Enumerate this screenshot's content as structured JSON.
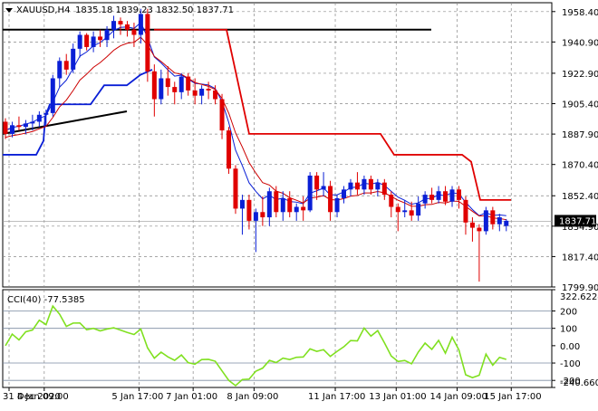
{
  "header": {
    "symbol_timeframe": "XAUUSD,H4",
    "ohlc": "1835.18 1839.23 1832.50 1837.71"
  },
  "colors": {
    "bull": "#0a1fd6",
    "bear": "#e00000",
    "trailing_stop": "#e00000",
    "ema_fast": "#0a1fd6",
    "ema_slow": "#cc0000",
    "channel": "#0a1fd6",
    "cci": "#80e020",
    "grid": "#888888",
    "level_line": "#000000",
    "price_box": "#000000"
  },
  "price_axis": {
    "ticks": [
      "1958.40",
      "1940.90",
      "1922.90",
      "1905.40",
      "1887.90",
      "1870.40",
      "1852.40",
      "1834.90",
      "1817.40",
      "1799.90"
    ],
    "current_price": "1837.71",
    "ylim": [
      1799.9,
      1963.5
    ]
  },
  "cci_panel": {
    "label": "CCI(40) -77.5385",
    "ticks": [
      "322.6224",
      "200",
      "100",
      "0.00",
      "-100",
      "-200",
      "-240.6604"
    ],
    "ylim": [
      -240.6604,
      322.6224
    ],
    "levels": [
      200,
      100,
      -100,
      -200
    ]
  },
  "time_axis": {
    "labels": [
      "31 Dec 2020",
      "4 Jan 09:00",
      "5 Jan 17:00",
      "7 Jan 01:00",
      "8 Jan 09:00",
      "11 Jan 17:00",
      "13 Jan 01:00",
      "14 Jan 09:00",
      "15 Jan 17:00"
    ]
  },
  "chart_data": {
    "type": "candlestick",
    "title": "XAUUSD,H4",
    "y_range": [
      1799.9,
      1963.5
    ],
    "candles": [
      [
        1895,
        1897,
        1885,
        1888
      ],
      [
        1888,
        1895,
        1886,
        1893
      ],
      [
        1893,
        1898,
        1890,
        1892
      ],
      [
        1892,
        1896,
        1888,
        1894
      ],
      [
        1894,
        1899,
        1890,
        1895
      ],
      [
        1895,
        1901,
        1892,
        1899
      ],
      [
        1899,
        1902,
        1893,
        1900
      ],
      [
        1900,
        1922,
        1898,
        1920
      ],
      [
        1920,
        1932,
        1915,
        1930
      ],
      [
        1930,
        1934,
        1922,
        1925
      ],
      [
        1925,
        1940,
        1923,
        1937
      ],
      [
        1937,
        1947,
        1932,
        1945
      ],
      [
        1945,
        1946,
        1936,
        1938
      ],
      [
        1938,
        1947,
        1935,
        1944
      ],
      [
        1944,
        1948,
        1938,
        1942
      ],
      [
        1942,
        1950,
        1938,
        1948
      ],
      [
        1948,
        1956,
        1943,
        1953
      ],
      [
        1953,
        1955,
        1945,
        1951
      ],
      [
        1951,
        1953,
        1944,
        1948
      ],
      [
        1948,
        1952,
        1938,
        1945
      ],
      [
        1945,
        1960,
        1940,
        1957
      ],
      [
        1957,
        1960,
        1918,
        1924
      ],
      [
        1924,
        1928,
        1898,
        1908
      ],
      [
        1908,
        1925,
        1905,
        1920
      ],
      [
        1920,
        1927,
        1910,
        1915
      ],
      [
        1915,
        1918,
        1905,
        1912
      ],
      [
        1912,
        1923,
        1908,
        1921
      ],
      [
        1921,
        1923,
        1910,
        1913
      ],
      [
        1913,
        1920,
        1905,
        1910
      ],
      [
        1910,
        1916,
        1905,
        1914
      ],
      [
        1914,
        1918,
        1908,
        1913
      ],
      [
        1913,
        1916,
        1905,
        1908
      ],
      [
        1908,
        1911,
        1885,
        1890
      ],
      [
        1890,
        1892,
        1865,
        1868
      ],
      [
        1868,
        1870,
        1842,
        1845
      ],
      [
        1845,
        1853,
        1830,
        1850
      ],
      [
        1850,
        1853,
        1833,
        1838
      ],
      [
        1838,
        1845,
        1820,
        1843
      ],
      [
        1843,
        1852,
        1835,
        1840
      ],
      [
        1840,
        1857,
        1835,
        1855
      ],
      [
        1855,
        1858,
        1840,
        1843
      ],
      [
        1843,
        1855,
        1838,
        1851
      ],
      [
        1851,
        1855,
        1840,
        1843
      ],
      [
        1843,
        1848,
        1838,
        1846
      ],
      [
        1846,
        1852,
        1838,
        1844
      ],
      [
        1844,
        1866,
        1843,
        1864
      ],
      [
        1864,
        1866,
        1850,
        1856
      ],
      [
        1856,
        1866,
        1852,
        1858
      ],
      [
        1858,
        1861,
        1838,
        1843
      ],
      [
        1843,
        1853,
        1840,
        1851
      ],
      [
        1851,
        1858,
        1848,
        1856
      ],
      [
        1856,
        1862,
        1852,
        1860
      ],
      [
        1860,
        1866,
        1853,
        1856
      ],
      [
        1856,
        1864,
        1853,
        1862
      ],
      [
        1862,
        1864,
        1853,
        1856
      ],
      [
        1856,
        1862,
        1852,
        1860
      ],
      [
        1860,
        1862,
        1850,
        1853
      ],
      [
        1853,
        1855,
        1840,
        1846
      ],
      [
        1846,
        1848,
        1832,
        1843
      ],
      [
        1843,
        1850,
        1840,
        1844
      ],
      [
        1844,
        1849,
        1838,
        1841
      ],
      [
        1841,
        1852,
        1838,
        1848
      ],
      [
        1848,
        1855,
        1845,
        1853
      ],
      [
        1853,
        1857,
        1848,
        1850
      ],
      [
        1850,
        1858,
        1848,
        1855
      ],
      [
        1855,
        1858,
        1847,
        1849
      ],
      [
        1849,
        1858,
        1846,
        1856
      ],
      [
        1856,
        1858,
        1845,
        1850
      ],
      [
        1850,
        1852,
        1830,
        1837
      ],
      [
        1837,
        1840,
        1826,
        1834
      ],
      [
        1834,
        1836,
        1803,
        1832
      ],
      [
        1832,
        1846,
        1830,
        1844
      ],
      [
        1844,
        1846,
        1833,
        1836
      ],
      [
        1836,
        1842,
        1832,
        1840
      ],
      [
        1835,
        1839,
        1832,
        1838
      ]
    ]
  }
}
